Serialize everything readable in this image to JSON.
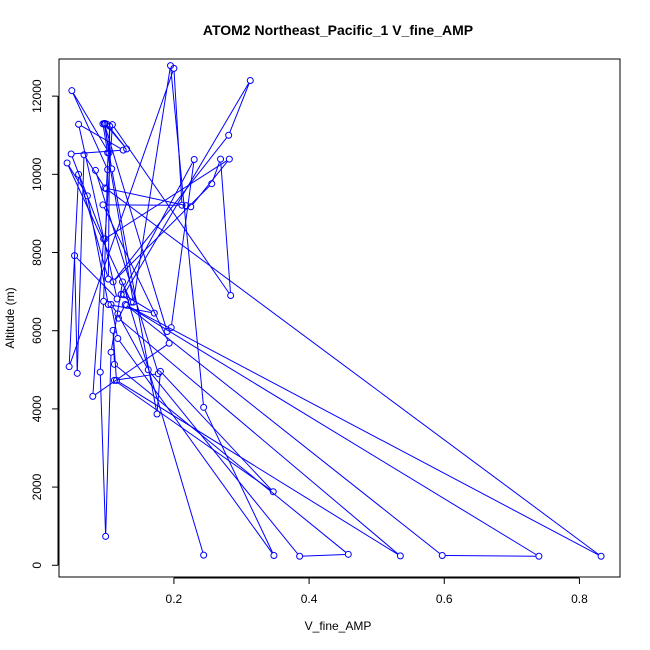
{
  "chart_data": {
    "type": "line",
    "title": "ATOM2 Northeast_Pacific_1 V_fine_AMP",
    "xlabel": "V_fine_AMP",
    "ylabel": "Altitude (m)",
    "xlim": [
      0.03,
      0.86
    ],
    "ylim": [
      -300,
      12950
    ],
    "xticks": [
      0.2,
      0.4,
      0.6,
      0.8
    ],
    "xtick_labels": [
      "0.2",
      "0.4",
      "0.6",
      "0.8"
    ],
    "yticks": [
      0,
      2000,
      4000,
      6000,
      8000,
      10000,
      12000
    ],
    "ytick_labels": [
      "0",
      "2000",
      "4000",
      "6000",
      "8000",
      "10000",
      "12000"
    ],
    "grid": false,
    "legend": "none",
    "marker": "open-circle",
    "color": "#0000ff",
    "series": [
      {
        "x": [
          0.244,
          0.124,
          0.107,
          0.099,
          0.091,
          0.096,
          0.102,
          0.049,
          0.104,
          0.098,
          0.098,
          0.13,
          0.101,
          0.095,
          0.102,
          0.14,
          0.195,
          0.244,
          0.348,
          0.117,
          0.107,
          0.117,
          0.162,
          0.386,
          0.458,
          0.112,
          0.11,
          0.115,
          0.535,
          0.118,
          0.128,
          0.597,
          0.74,
          0.13,
          0.832,
          0.1,
          0.105,
          0.103,
          0.059,
          0.045,
          0.2,
          0.212,
          0.095,
          0.193,
          0.08,
          0.096,
          0.048,
          0.125,
          0.059,
          0.116,
          0.053,
          0.057,
          0.067,
          0.098,
          0.218,
          0.225,
          0.282,
          0.098,
          0.109,
          0.284,
          0.269,
          0.256,
          0.11,
          0.281,
          0.313,
          0.126,
          0.171,
          0.103,
          0.072,
          0.042,
          0.137,
          0.122,
          0.23,
          0.196,
          0.19,
          0.097,
          0.108,
          0.175,
          0.18,
          0.347,
          0.112,
          0.177,
          0.084
        ],
        "y": [
          260,
          7250,
          5450,
          740,
          4940,
          6750,
          10120,
          12140,
          10550,
          11280,
          11300,
          10650,
          11280,
          11290,
          10550,
          6730,
          12780,
          4040,
          250,
          5800,
          6670,
          6430,
          5000,
          230,
          280,
          5140,
          6010,
          4730,
          240,
          6320,
          6670,
          250,
          230,
          6650,
          230,
          9630,
          11230,
          7320,
          10000,
          5080,
          12710,
          9210,
          9220,
          5680,
          4320,
          8350,
          10520,
          10620,
          11280,
          6810,
          7920,
          4910,
          10500,
          9650,
          9200,
          9170,
          10390,
          8350,
          11270,
          6900,
          10390,
          9760,
          7250,
          11000,
          12400,
          6920,
          6450,
          6670,
          9450,
          10290,
          6730,
          6930,
          10380,
          6080,
          5980,
          11300,
          10140,
          3870,
          4960,
          1880,
          4730,
          4900,
          10100
        ]
      }
    ]
  }
}
